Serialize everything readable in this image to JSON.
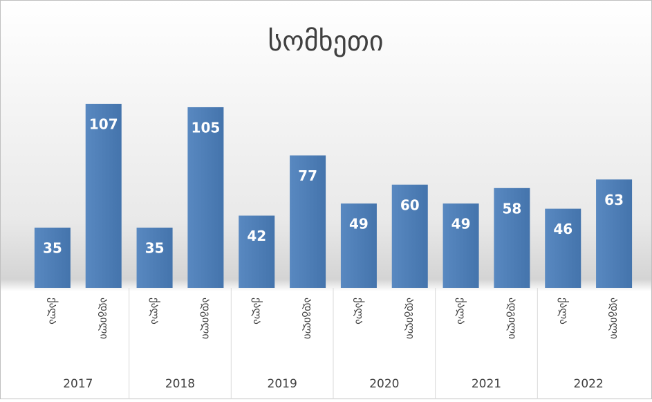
{
  "chart_data": {
    "type": "bar",
    "title": "სომხეთი",
    "categories": [
      "ქალა",
      "ადგილი",
      "ქალა",
      "ადგილი",
      "ქალა",
      "ადგილი",
      "ქალა",
      "ადგილი",
      "ქალა",
      "ადგილი",
      "ქალა",
      "ადგილი"
    ],
    "groups": [
      "2017",
      "2018",
      "2019",
      "2020",
      "2021",
      "2022"
    ],
    "values": [
      35,
      107,
      35,
      105,
      42,
      77,
      49,
      60,
      49,
      58,
      46,
      63
    ],
    "color": "#4a7ebb"
  }
}
